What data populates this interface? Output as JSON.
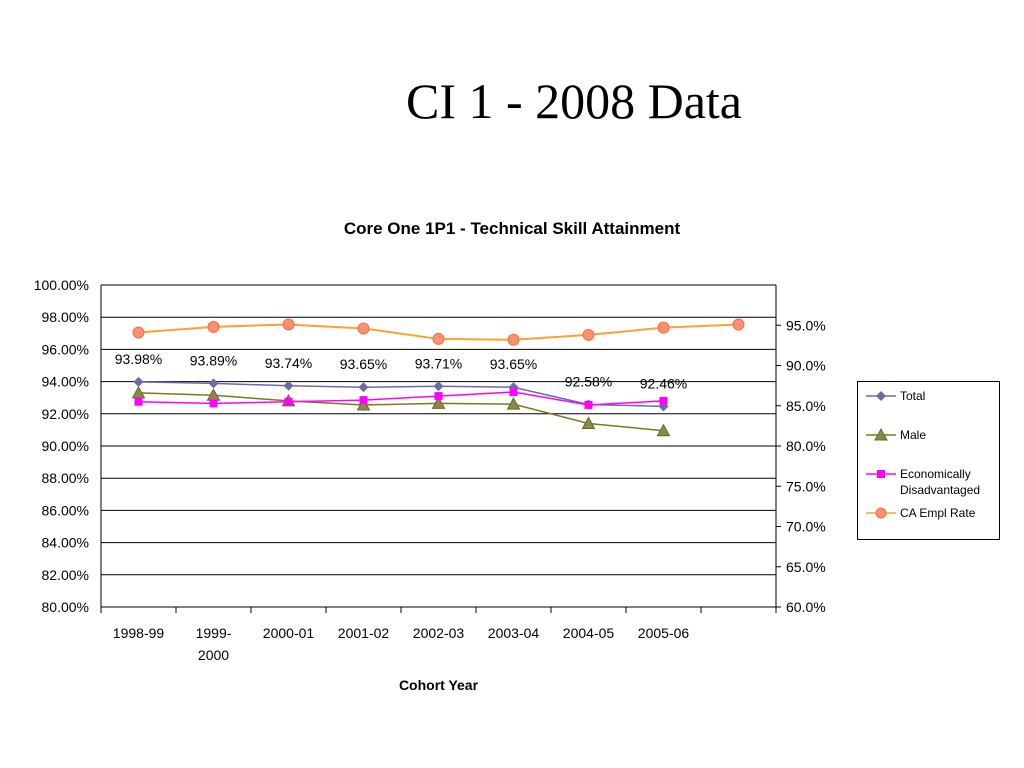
{
  "slide": {
    "title": "CI 1 - 2008 Data"
  },
  "chart_data": {
    "type": "line",
    "title": "Core One 1P1 - Technical Skill Attainment",
    "xlabel": "Cohort Year",
    "ylabel": "",
    "categories": [
      "1998-99",
      "1999-\n2000",
      "2000-01",
      "2001-02",
      "2002-03",
      "2003-04",
      "2004-05",
      "2005-06",
      ""
    ],
    "y_left": {
      "min": 80,
      "max": 100,
      "step": 2,
      "tick_labels": [
        "80.00%",
        "82.00%",
        "84.00%",
        "86.00%",
        "88.00%",
        "90.00%",
        "92.00%",
        "94.00%",
        "96.00%",
        "98.00%",
        "100.00%"
      ]
    },
    "y_right": {
      "min": 60,
      "max": 100,
      "step": 5,
      "tick_labels": [
        "60.0%",
        "65.0%",
        "70.0%",
        "75.0%",
        "80.0%",
        "85.0%",
        "90.0%",
        "95.0%"
      ]
    },
    "grid": true,
    "legend_position": "right",
    "series": [
      {
        "name": "Total",
        "axis": "left",
        "marker": "diamond",
        "color": "#6b6baa",
        "values": [
          93.98,
          93.89,
          93.74,
          93.65,
          93.71,
          93.65,
          92.58,
          92.46,
          null
        ],
        "data_labels": [
          "93.98%",
          "93.89%",
          "93.74%",
          "93.65%",
          "93.71%",
          "93.65%",
          "92.58%",
          "92.46%",
          ""
        ]
      },
      {
        "name": "Male",
        "axis": "left",
        "marker": "triangle",
        "color": "#7a7a1e",
        "values": [
          93.3,
          93.15,
          92.8,
          92.55,
          92.65,
          92.6,
          91.4,
          90.95,
          null
        ]
      },
      {
        "name": "Economically Disadvantaged",
        "axis": "left",
        "marker": "square",
        "color": "#ff00ff",
        "values": [
          92.75,
          92.65,
          92.75,
          92.85,
          93.1,
          93.35,
          92.55,
          92.8,
          null
        ]
      },
      {
        "name": "CA Empl Rate",
        "axis": "right",
        "marker": "circle",
        "color": "#ffa030",
        "values": [
          94.1,
          94.8,
          95.1,
          94.6,
          93.3,
          93.2,
          93.8,
          94.7,
          95.1
        ]
      }
    ]
  }
}
